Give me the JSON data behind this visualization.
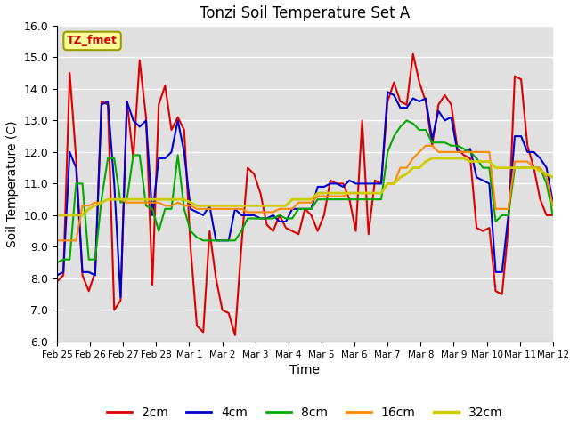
{
  "title": "Tonzi Soil Temperature Set A",
  "xlabel": "Time",
  "ylabel": "Soil Temperature (C)",
  "ylim": [
    6.0,
    16.0
  ],
  "yticks": [
    6.0,
    7.0,
    8.0,
    9.0,
    10.0,
    11.0,
    12.0,
    13.0,
    14.0,
    15.0,
    16.0
  ],
  "xtick_labels": [
    "Feb 25",
    "Feb 26",
    "Feb 27",
    "Feb 28",
    "Mar 1",
    "Mar 2",
    "Mar 3",
    "Mar 4",
    "Mar 5",
    "Mar 6",
    "Mar 7",
    "Mar 8",
    "Mar 9",
    "Mar 10",
    "Mar 11",
    "Mar 12"
  ],
  "annotation": "TZ_fmet",
  "annotation_color": "#cc0000",
  "annotation_bg": "#ffff99",
  "annotation_border": "#999900",
  "bg_color": "#e0e0e0",
  "grid_color": "#ffffff",
  "legend_items": [
    "2cm",
    "4cm",
    "8cm",
    "16cm",
    "32cm"
  ],
  "line_colors": [
    "#dd0000",
    "#0000cc",
    "#00aa00",
    "#ff8800",
    "#cccc00"
  ],
  "line_widths": [
    1.5,
    1.5,
    1.5,
    1.5,
    2.0
  ],
  "t_2cm": [
    7.9,
    8.1,
    14.5,
    11.8,
    8.1,
    7.6,
    8.2,
    13.6,
    13.5,
    7.0,
    7.3,
    13.6,
    11.8,
    14.9,
    13.1,
    7.8,
    13.5,
    14.1,
    12.7,
    13.1,
    12.7,
    9.0,
    6.5,
    6.3,
    9.5,
    8.0,
    7.0,
    6.9,
    6.2,
    9.0,
    11.5,
    11.3,
    10.7,
    9.7,
    9.5,
    10.0,
    9.6,
    9.5,
    9.4,
    10.2,
    10.0,
    9.5,
    10.0,
    11.1,
    11.0,
    11.0,
    10.5,
    9.5,
    13.0,
    9.4,
    11.1,
    11.0,
    13.6,
    14.2,
    13.6,
    13.5,
    15.1,
    14.2,
    13.6,
    12.2,
    13.5,
    13.8,
    13.5,
    12.1,
    11.9,
    11.8,
    9.6,
    9.5,
    9.6,
    7.6,
    7.5,
    9.6,
    14.4,
    14.3,
    12.2,
    11.5,
    10.5,
    10.0,
    10.0
  ],
  "t_4cm": [
    8.1,
    8.2,
    12.0,
    11.5,
    8.2,
    8.2,
    8.1,
    13.5,
    13.6,
    11.0,
    7.4,
    13.6,
    13.0,
    12.8,
    13.0,
    10.0,
    11.8,
    11.8,
    12.0,
    13.0,
    12.0,
    10.2,
    10.1,
    10.0,
    10.3,
    9.2,
    9.2,
    9.2,
    10.2,
    10.0,
    10.0,
    10.0,
    9.9,
    9.9,
    10.0,
    9.8,
    9.8,
    10.2,
    10.2,
    10.2,
    10.2,
    10.9,
    10.9,
    11.0,
    11.0,
    10.9,
    11.1,
    11.0,
    11.0,
    11.0,
    11.0,
    11.0,
    13.9,
    13.8,
    13.4,
    13.4,
    13.7,
    13.6,
    13.7,
    12.4,
    13.3,
    13.0,
    13.1,
    12.0,
    12.0,
    12.1,
    11.2,
    11.1,
    11.0,
    8.2,
    8.2,
    10.0,
    12.5,
    12.5,
    12.0,
    12.0,
    11.8,
    11.5,
    10.4
  ],
  "t_8cm": [
    8.5,
    8.6,
    8.6,
    11.0,
    11.0,
    8.6,
    8.6,
    10.5,
    11.8,
    11.8,
    10.4,
    10.5,
    11.9,
    11.9,
    10.3,
    10.2,
    9.5,
    10.2,
    10.2,
    11.9,
    10.2,
    9.5,
    9.3,
    9.2,
    9.2,
    9.2,
    9.2,
    9.2,
    9.2,
    9.5,
    9.9,
    9.9,
    9.9,
    9.9,
    9.9,
    10.0,
    9.9,
    9.9,
    10.2,
    10.2,
    10.2,
    10.5,
    10.5,
    10.5,
    10.5,
    10.5,
    10.5,
    10.5,
    10.5,
    10.5,
    10.5,
    10.5,
    12.0,
    12.5,
    12.8,
    13.0,
    12.9,
    12.7,
    12.7,
    12.3,
    12.3,
    12.3,
    12.2,
    12.2,
    12.1,
    12.0,
    11.8,
    11.5,
    11.5,
    9.8,
    10.0,
    10.0,
    11.5,
    11.5,
    11.5,
    11.5,
    11.5,
    11.0,
    10.0
  ],
  "t_16cm": [
    9.2,
    9.2,
    9.2,
    9.2,
    10.3,
    10.3,
    10.4,
    10.4,
    10.5,
    10.5,
    10.5,
    10.4,
    10.4,
    10.4,
    10.4,
    10.4,
    10.4,
    10.3,
    10.3,
    10.4,
    10.3,
    10.3,
    10.2,
    10.2,
    10.2,
    10.2,
    10.2,
    10.2,
    10.2,
    10.2,
    10.1,
    10.1,
    10.1,
    10.1,
    10.1,
    10.2,
    10.2,
    10.2,
    10.4,
    10.4,
    10.4,
    10.6,
    10.6,
    10.6,
    10.6,
    10.6,
    10.7,
    10.7,
    10.7,
    10.7,
    10.7,
    10.7,
    11.0,
    11.0,
    11.5,
    11.5,
    11.8,
    12.0,
    12.2,
    12.2,
    12.0,
    12.0,
    12.0,
    12.0,
    12.0,
    12.0,
    12.0,
    12.0,
    12.0,
    10.2,
    10.2,
    10.2,
    11.7,
    11.7,
    11.7,
    11.5,
    11.5,
    11.2,
    10.3
  ],
  "t_32cm": [
    10.0,
    10.0,
    10.0,
    10.0,
    10.0,
    10.2,
    10.3,
    10.4,
    10.5,
    10.5,
    10.5,
    10.5,
    10.5,
    10.5,
    10.5,
    10.5,
    10.5,
    10.5,
    10.5,
    10.5,
    10.5,
    10.4,
    10.3,
    10.3,
    10.3,
    10.3,
    10.3,
    10.3,
    10.3,
    10.3,
    10.3,
    10.3,
    10.3,
    10.3,
    10.3,
    10.3,
    10.3,
    10.5,
    10.5,
    10.5,
    10.5,
    10.7,
    10.7,
    10.7,
    10.7,
    10.7,
    10.7,
    10.7,
    10.7,
    10.7,
    10.7,
    10.7,
    11.0,
    11.0,
    11.2,
    11.3,
    11.5,
    11.5,
    11.7,
    11.8,
    11.8,
    11.8,
    11.8,
    11.8,
    11.8,
    11.7,
    11.7,
    11.7,
    11.7,
    11.5,
    11.5,
    11.5,
    11.5,
    11.5,
    11.5,
    11.5,
    11.4,
    11.3,
    11.2
  ]
}
